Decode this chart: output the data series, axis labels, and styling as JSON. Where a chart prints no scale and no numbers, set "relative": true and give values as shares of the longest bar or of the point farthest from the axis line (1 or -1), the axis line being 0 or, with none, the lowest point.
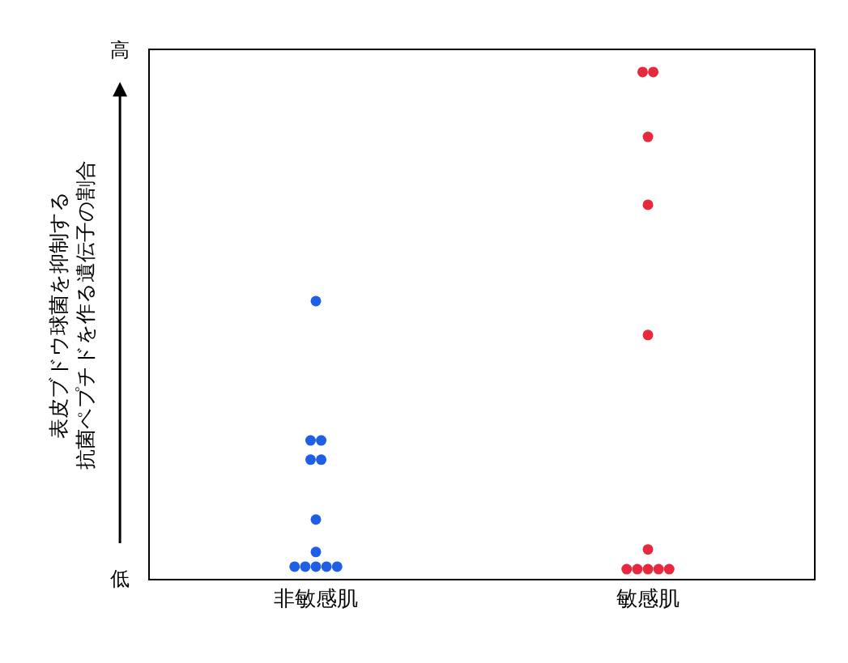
{
  "chart_data": {
    "type": "scatter",
    "relative": true,
    "categories": [
      "非敏感肌",
      "敏感肌"
    ],
    "ylabel": "表皮ブドウ球菌を抑制する抗菌ペプチドを作る遺伝子の割合",
    "annotations": [
      "高",
      "低"
    ],
    "series": [
      {
        "color": "#1f5fe6",
        "x": [
          "非敏感肌",
          "非敏感肌",
          "非敏感肌",
          "非敏感肌",
          "非敏感肌",
          "非敏感肌",
          "非敏感肌",
          "非敏感肌",
          "非敏感肌",
          "非敏感肌",
          "非敏感肌",
          "非敏感肌"
        ],
        "values": [
          0.548,
          0.273,
          0.273,
          0.235,
          0.235,
          0.117,
          0.053,
          0.024,
          0.024,
          0.024,
          0.024,
          0.024
        ]
      },
      {
        "color": "#e8283c",
        "x": [
          "敏感肌",
          "敏感肌",
          "敏感肌",
          "敏感肌",
          "敏感肌",
          "敏感肌",
          "敏感肌",
          "敏感肌",
          "敏感肌",
          "敏感肌",
          "敏感肌"
        ],
        "values": [
          1,
          1,
          0.872,
          0.738,
          0.481,
          0.058,
          0.019,
          0.019,
          0.019,
          0.019,
          0.019
        ]
      }
    ],
    "marker": "circle"
  }
}
